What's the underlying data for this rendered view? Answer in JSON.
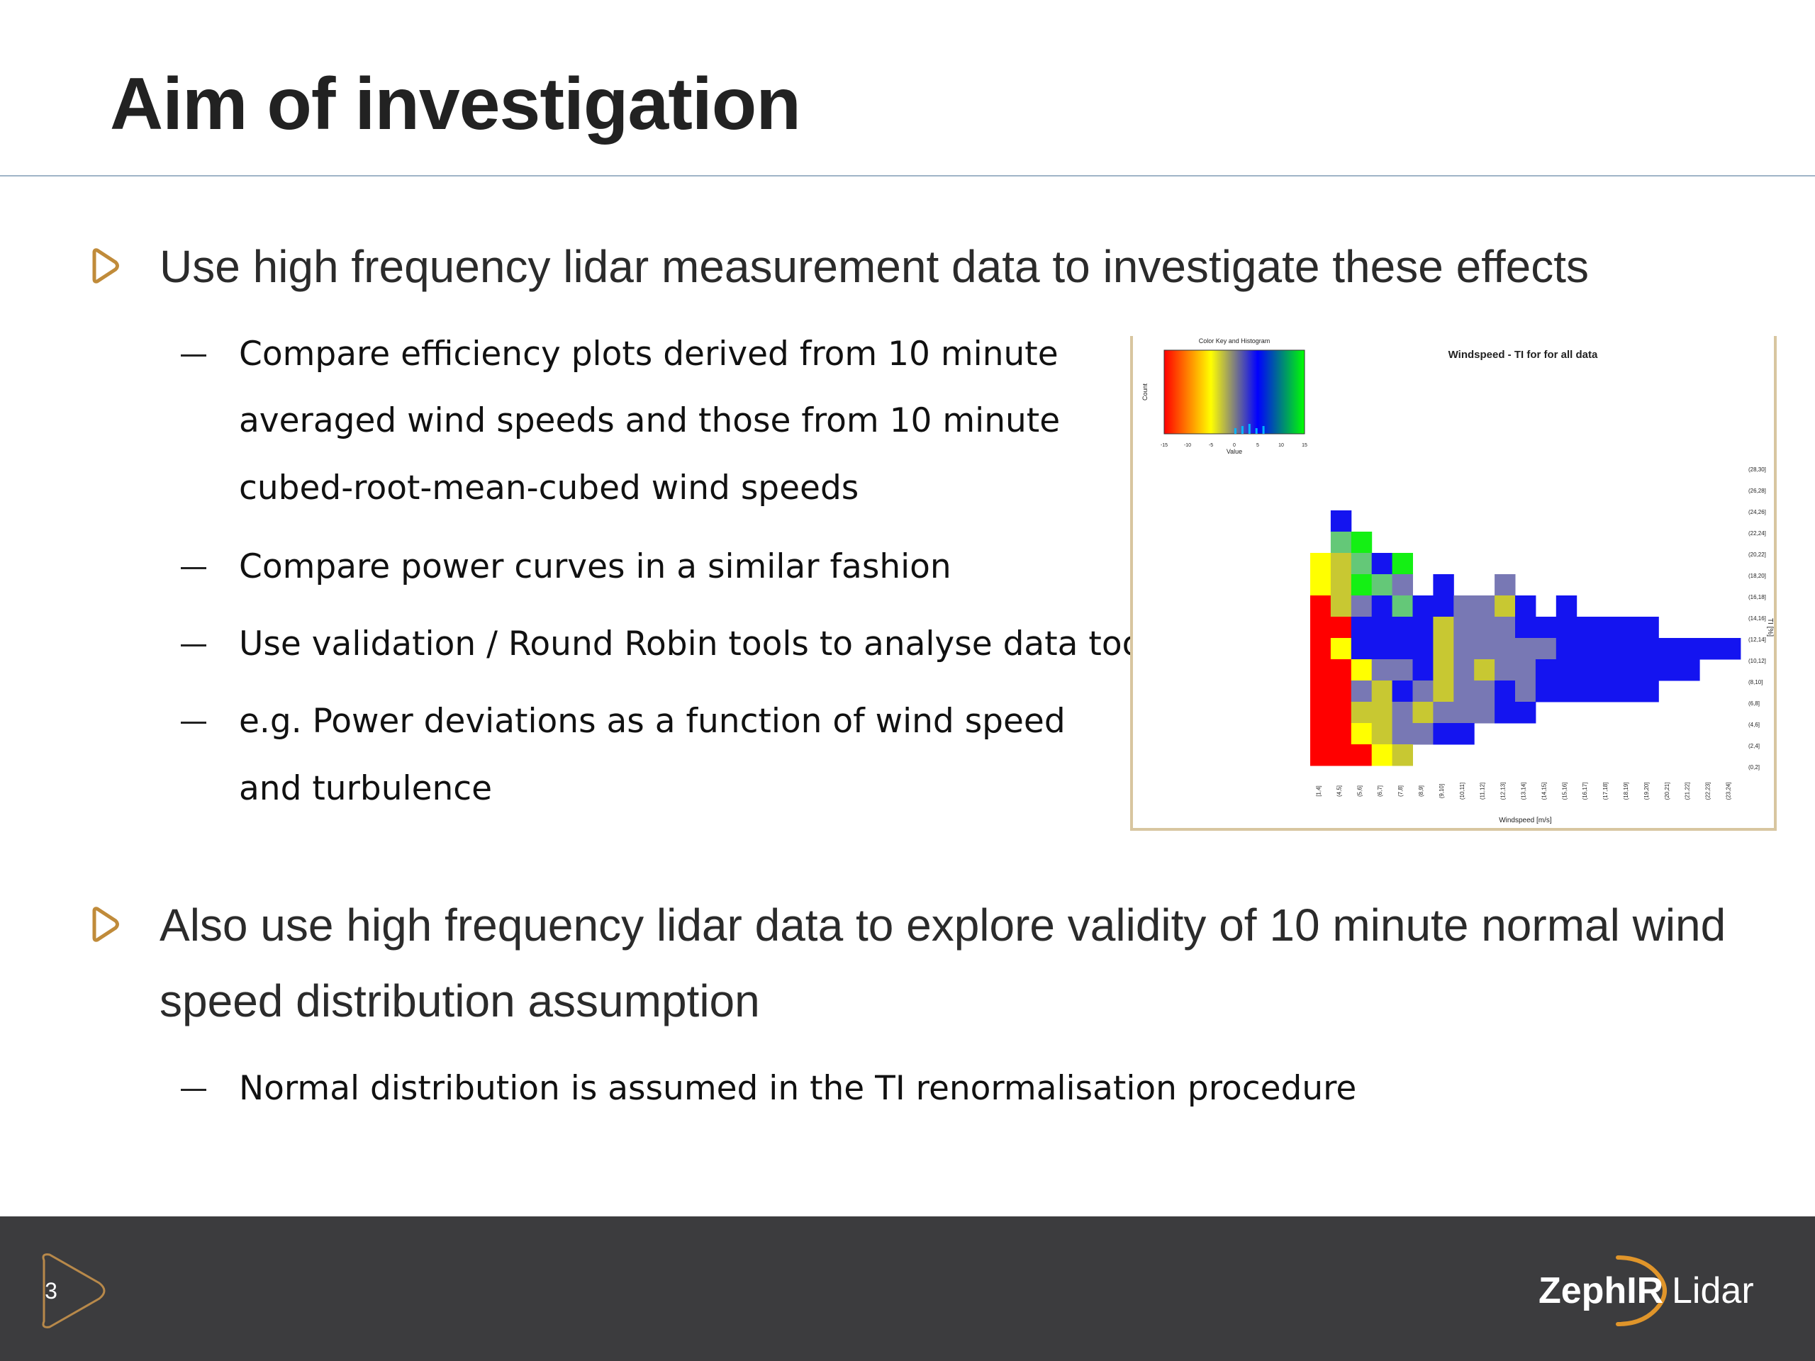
{
  "slide": {
    "title": "Aim of investigation",
    "page_number": "3"
  },
  "bullets": [
    {
      "text": "Use high frequency lidar measurement data to investigate these effects",
      "sub": [
        {
          "line1": "Compare efficiency plots derived from 10 minute",
          "line2": "averaged wind speeds and those from 10 minute",
          "line3": "cubed-root-mean-cubed wind speeds"
        },
        {
          "line1": "Compare power curves in a similar fashion"
        },
        {
          "line1": "Use validation / Round Robin tools to analyse data too"
        },
        {
          "line1": "e.g. Power deviations as a function of wind speed",
          "line2": "and turbulence"
        }
      ]
    },
    {
      "line1": "Also use high frequency lidar data to explore validity of 10 minute normal wind",
      "line2": "speed distribution assumption",
      "sub": [
        {
          "line1": "Normal distribution is assumed in the TI renormalisation procedure"
        }
      ]
    }
  ],
  "chart_data": {
    "type": "heatmap",
    "title": "Windspeed - TI for for all data",
    "xlabel": "Windspeed [m/s]",
    "ylabel": "TI [%]",
    "color_key": {
      "title": "Color Key and Histogram",
      "xlabel": "Value",
      "ylabel": "Count",
      "x_ticks": [
        "-15",
        "-10",
        "-5",
        "0",
        "5",
        "10",
        "15"
      ],
      "colors": [
        "#ff0000",
        "#ffff00",
        "#0000ff",
        "#00ff00"
      ]
    },
    "x_categories": [
      "[1,4]",
      "(4,5]",
      "(5,6]",
      "(6,7]",
      "(7,8]",
      "(8,9]",
      "(9,10]",
      "(10,11]",
      "(11,12]",
      "(12,13]",
      "(13,14]",
      "(14,15]",
      "(15,16]",
      "(16,17]",
      "(17,18]",
      "(18,19]",
      "(19,20]",
      "(20,21]",
      "(21,22]",
      "(22,23]",
      "(23,24]"
    ],
    "y_categories": [
      "(28,30]",
      "(26,28]",
      "(24,26]",
      "(22,24]",
      "(20,22]",
      "(18,20]",
      "(16,18]",
      "(14,16]",
      "(12,14]",
      "(10,12]",
      "(8,10]",
      "(6,8]",
      "(4,6]",
      "(2,4]",
      "(0,2]"
    ],
    "cells": [
      [
        0,
        0,
        0,
        0,
        0,
        0,
        0,
        0,
        0,
        0,
        0,
        0,
        0,
        0,
        0,
        0,
        0,
        0,
        0,
        0,
        0
      ],
      [
        0,
        0,
        0,
        0,
        0,
        0,
        0,
        0,
        0,
        0,
        0,
        0,
        0,
        0,
        0,
        0,
        0,
        0,
        0,
        0,
        0
      ],
      [
        0,
        5,
        0,
        0,
        0,
        0,
        0,
        0,
        0,
        0,
        0,
        0,
        0,
        0,
        0,
        0,
        0,
        0,
        0,
        0,
        0
      ],
      [
        0,
        6,
        7,
        0,
        0,
        0,
        0,
        0,
        0,
        0,
        0,
        0,
        0,
        0,
        0,
        0,
        0,
        0,
        0,
        0,
        0
      ],
      [
        2,
        3,
        6,
        5,
        7,
        0,
        0,
        0,
        0,
        0,
        0,
        0,
        0,
        0,
        0,
        0,
        0,
        0,
        0,
        0,
        0
      ],
      [
        2,
        3,
        7,
        6,
        4,
        0,
        5,
        0,
        0,
        4,
        0,
        0,
        0,
        0,
        0,
        0,
        0,
        0,
        0,
        0,
        0
      ],
      [
        1,
        3,
        4,
        5,
        6,
        5,
        5,
        4,
        4,
        3,
        5,
        0,
        5,
        0,
        0,
        0,
        0,
        0,
        0,
        0,
        0
      ],
      [
        1,
        1,
        5,
        5,
        5,
        5,
        3,
        4,
        4,
        4,
        5,
        5,
        5,
        5,
        5,
        5,
        5,
        0,
        0,
        0,
        0
      ],
      [
        1,
        2,
        5,
        5,
        5,
        5,
        3,
        4,
        4,
        4,
        4,
        4,
        5,
        5,
        5,
        5,
        5,
        5,
        5,
        5,
        5
      ],
      [
        1,
        1,
        2,
        4,
        4,
        5,
        3,
        4,
        3,
        4,
        4,
        5,
        5,
        5,
        5,
        5,
        5,
        5,
        5,
        0,
        0
      ],
      [
        1,
        1,
        4,
        3,
        5,
        4,
        3,
        4,
        4,
        5,
        4,
        5,
        5,
        5,
        5,
        5,
        5,
        0,
        0,
        0,
        0
      ],
      [
        1,
        1,
        3,
        3,
        4,
        3,
        4,
        4,
        4,
        5,
        5,
        0,
        0,
        0,
        0,
        0,
        0,
        0,
        0,
        0,
        0
      ],
      [
        1,
        1,
        2,
        3,
        4,
        4,
        5,
        5,
        0,
        0,
        0,
        0,
        0,
        0,
        0,
        0,
        0,
        0,
        0,
        0,
        0
      ],
      [
        1,
        1,
        1,
        2,
        3,
        0,
        0,
        0,
        0,
        0,
        0,
        0,
        0,
        0,
        0,
        0,
        0,
        0,
        0,
        0,
        0
      ],
      [
        0,
        0,
        0,
        0,
        0,
        0,
        0,
        0,
        0,
        0,
        0,
        0,
        0,
        0,
        0,
        0,
        0,
        0,
        0,
        0,
        0
      ]
    ],
    "cell_colors": {
      "1": "#ff0000",
      "2": "#ffff00",
      "3": "#c8c832",
      "4": "#7878b4",
      "5": "#1414f0",
      "6": "#64c878",
      "7": "#14f014"
    }
  },
  "brand": {
    "logo_text_bold": "ZephIR",
    "logo_text_light": "Lidar",
    "accent_color": "#c08b3a"
  }
}
